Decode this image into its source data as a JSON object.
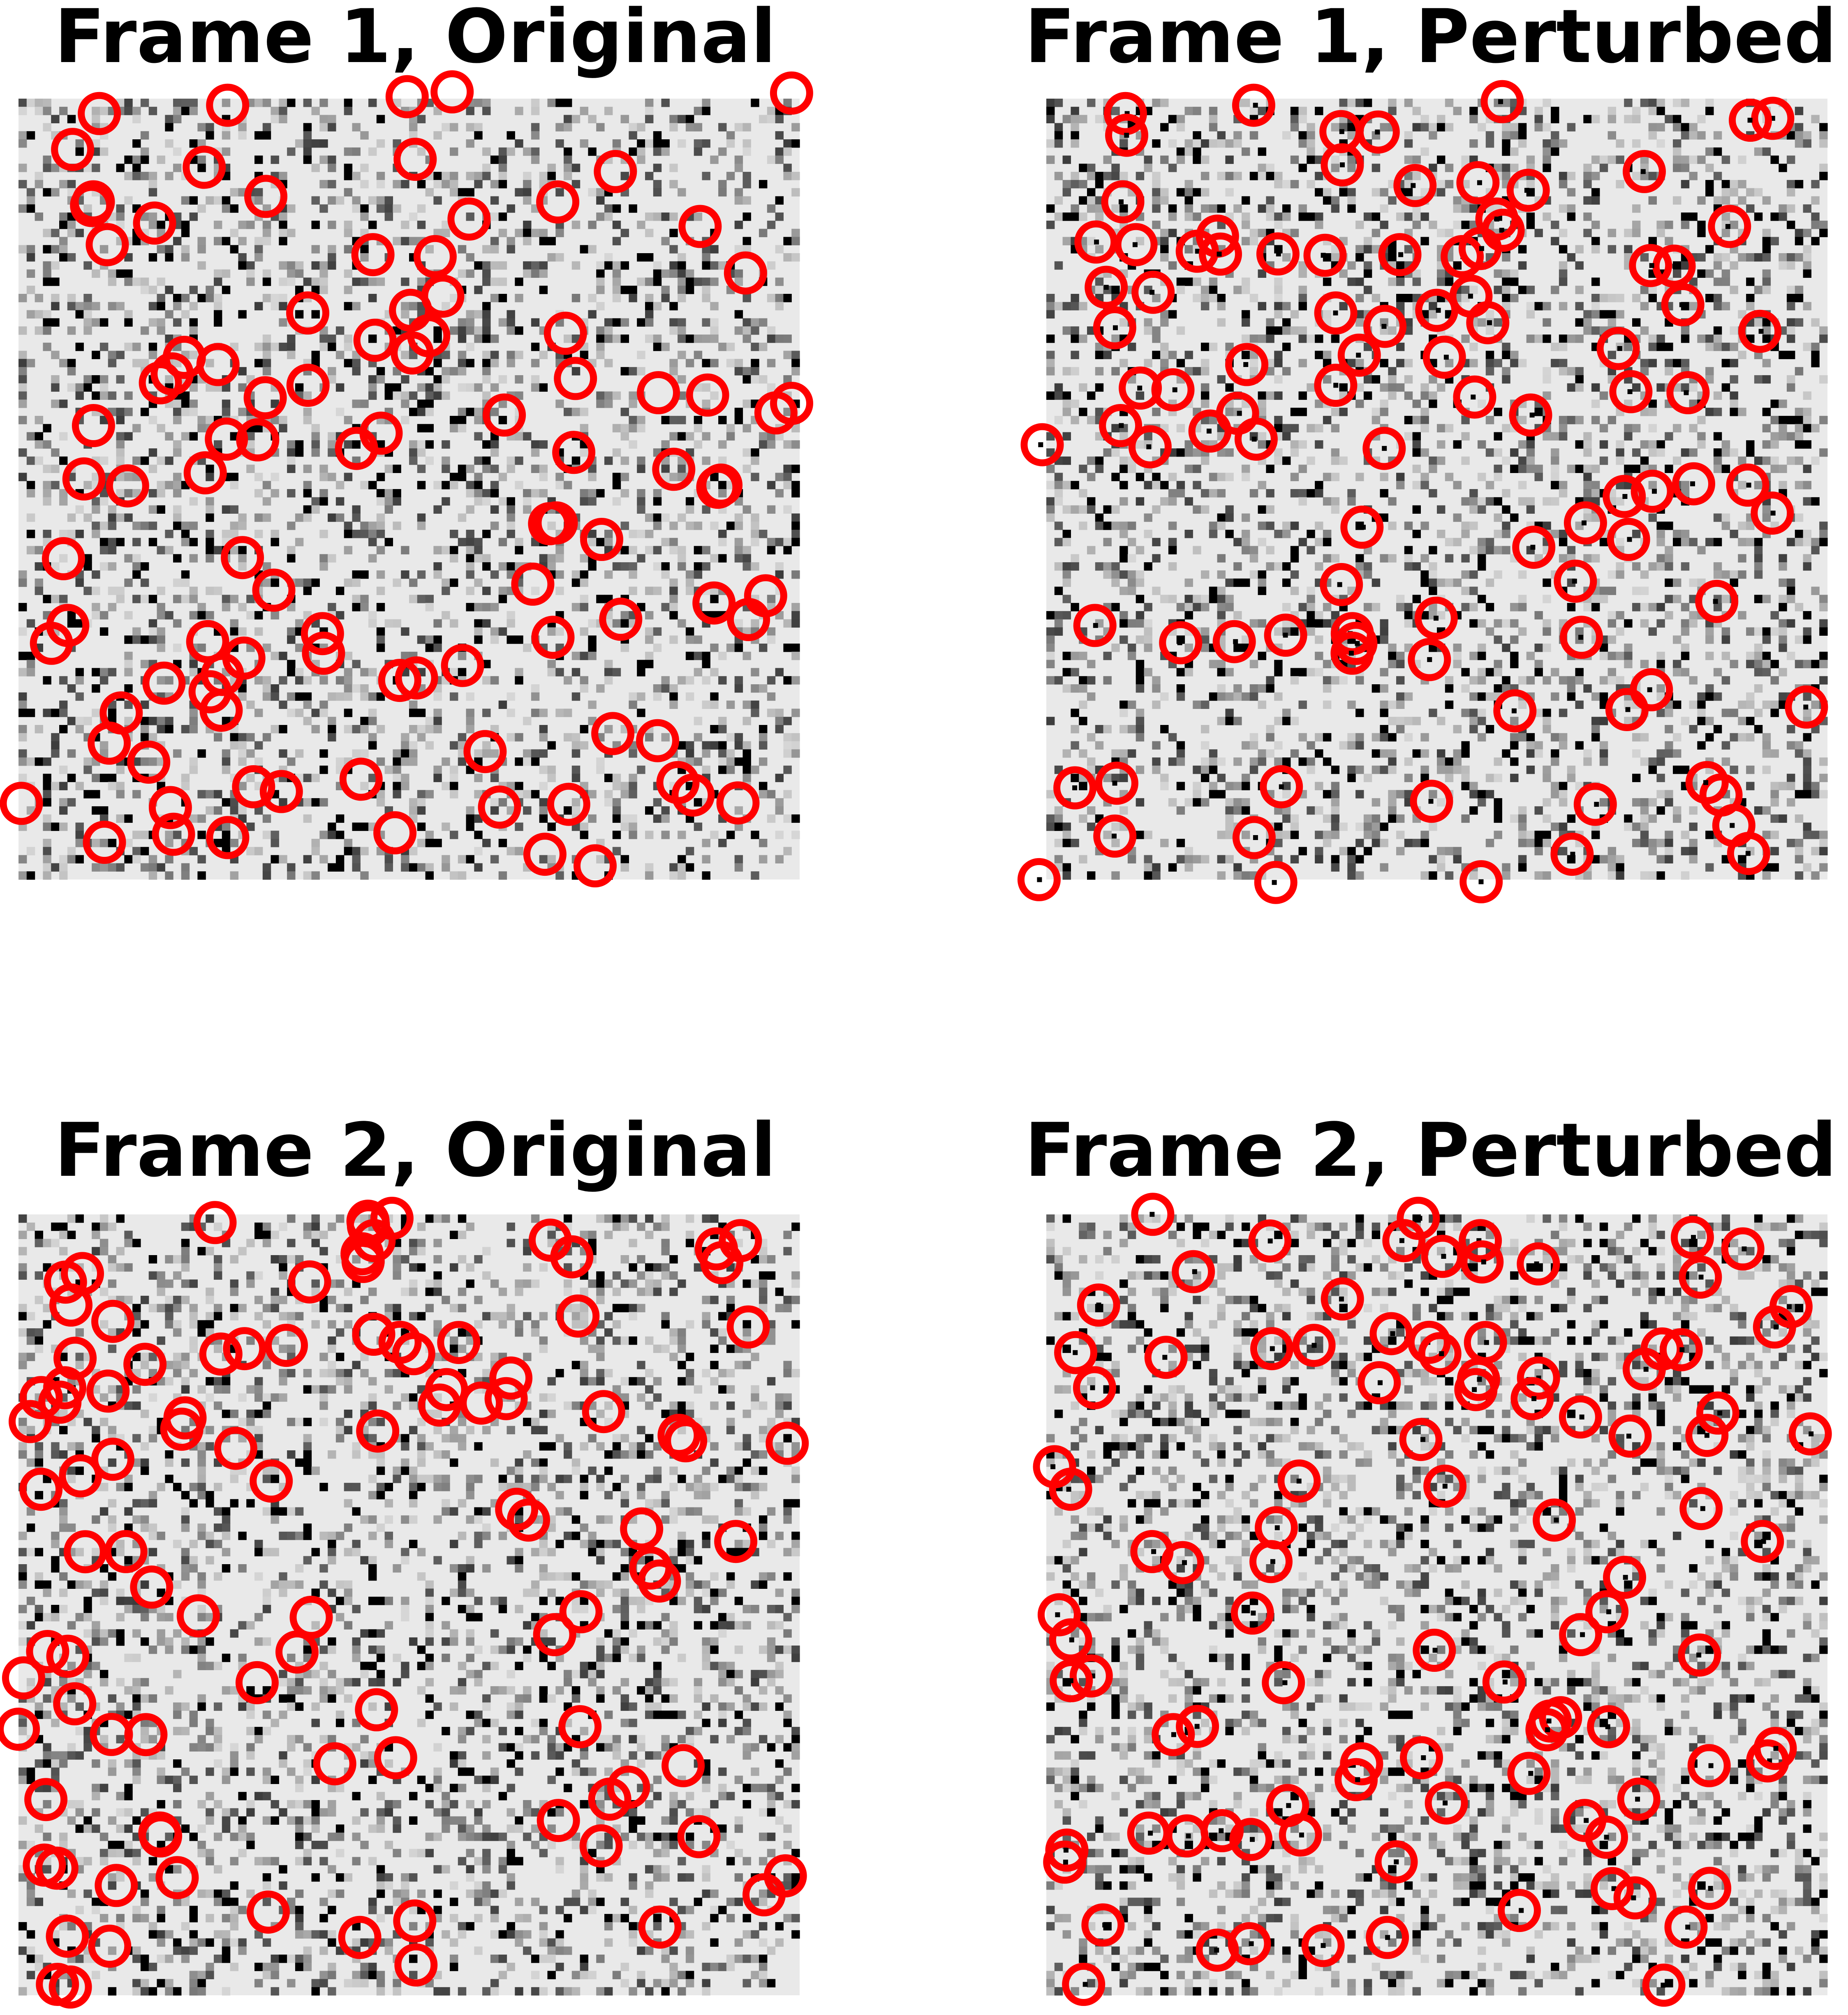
{
  "panels": [
    {
      "title": "Frame 1, Original",
      "frame": 1,
      "variant": "original",
      "seed": 11,
      "circle_seed": 101,
      "circle_count": 98,
      "dots": false
    },
    {
      "title": "Frame 1, Perturbed",
      "frame": 1,
      "variant": "perturbed",
      "seed": 12,
      "circle_seed": 101,
      "circle_count": 98,
      "dots": true
    },
    {
      "title": "Frame 2, Original",
      "frame": 2,
      "variant": "original",
      "seed": 21,
      "circle_seed": 202,
      "circle_count": 100,
      "dots": false
    },
    {
      "title": "Frame 2, Perturbed",
      "frame": 2,
      "variant": "perturbed",
      "seed": 22,
      "circle_seed": 202,
      "circle_count": 100,
      "dots": true
    }
  ],
  "colors": {
    "circle": "#ff0000",
    "background": "#e9e9e9",
    "title": "#000000"
  }
}
